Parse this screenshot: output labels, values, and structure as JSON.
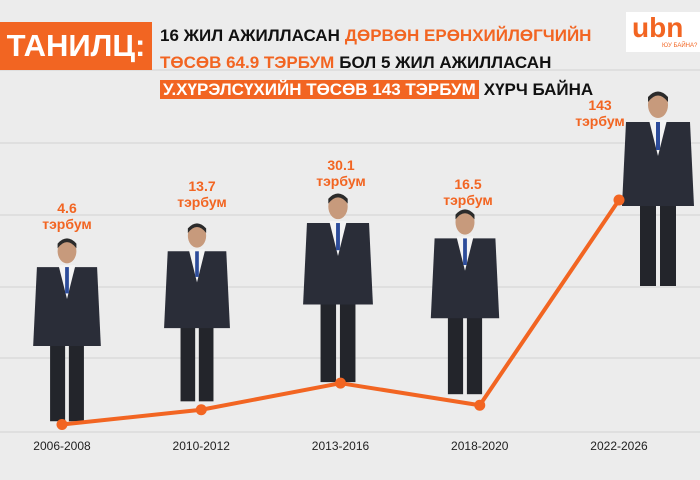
{
  "header": {
    "badge": "ТАНИЛЦ:",
    "logo": "ubn",
    "logo_sub": "ЮУ БАЙНА?",
    "lines": [
      [
        {
          "text": "16 ЖИЛ АЖИЛЛАСАН",
          "style": "plain"
        },
        {
          "text": "ДӨРВӨН ЕРӨНХИЙЛӨГЧИЙН",
          "style": "orange"
        }
      ],
      [
        {
          "text": "ТӨСӨВ 64.9 ТЭРБУМ",
          "style": "orange"
        },
        {
          "text": "БОЛ 5 ЖИЛ АЖИЛЛАСАН",
          "style": "plain"
        }
      ],
      [
        {
          "text": "У.ХҮРЭЛСҮХИЙН ТӨСӨВ 143 ТЭРБУМ",
          "style": "boxed"
        },
        {
          "text": "ХҮРЧ БАЙНА",
          "style": "plain"
        }
      ]
    ]
  },
  "chart_data": {
    "type": "line",
    "color": "#f26522",
    "categories": [
      "2006-2008",
      "2010-2012",
      "2013-2016",
      "2018-2020",
      "2022-2026"
    ],
    "values": [
      4.6,
      13.7,
      30.1,
      16.5,
      143
    ],
    "value_labels": [
      "4.6 тэрбум",
      "13.7 тэрбум",
      "30.1 тэрбум",
      "16.5 тэрбум",
      "143 тэрбум"
    ]
  }
}
